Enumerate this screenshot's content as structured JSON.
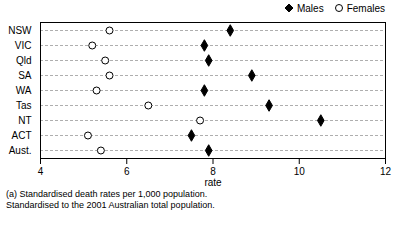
{
  "chart_data": {
    "type": "dot",
    "categories": [
      "NSW",
      "VIC",
      "Qld",
      "SA",
      "WA",
      "Tas",
      "NT",
      "ACT",
      "Aust."
    ],
    "series": [
      {
        "name": "Males",
        "color": "#000000",
        "marker": "diamond",
        "values": [
          8.4,
          7.8,
          7.9,
          8.9,
          7.8,
          9.3,
          10.5,
          7.5,
          7.9
        ]
      },
      {
        "name": "Females",
        "color": "#ffffff",
        "marker": "circle",
        "values": [
          5.6,
          5.2,
          5.5,
          5.6,
          5.3,
          6.5,
          7.7,
          5.1,
          5.4
        ]
      }
    ],
    "xlim": [
      4,
      12
    ],
    "xticks": [
      4,
      6,
      8,
      10,
      12
    ],
    "xlabel": "rate",
    "grid": true,
    "legend": "upper right",
    "annotations": [
      "(a) Standardised death rates per 1,000 population.",
      "Standardised to the 2001 Australian total population."
    ]
  }
}
